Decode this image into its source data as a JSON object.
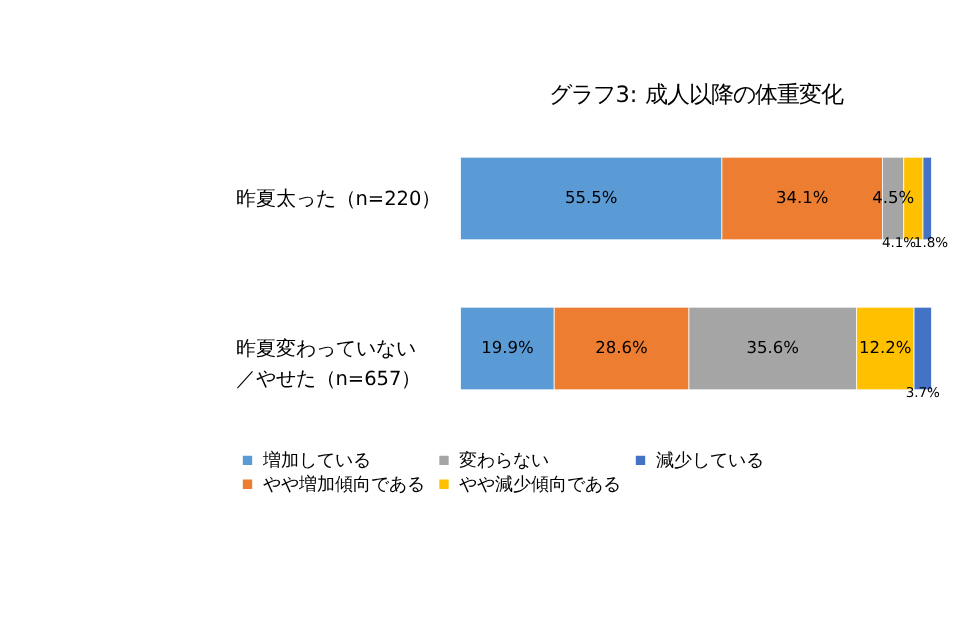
{
  "chart_data": {
    "type": "bar",
    "orientation": "horizontal",
    "stacked": true,
    "title": "グラフ3: 成人以降の体重変化",
    "categories": [
      "昨夏太った（n=220）",
      "昨夏変わっていない／やせた（n=657）"
    ],
    "xlim": [
      0,
      100
    ],
    "tick_labels": "y",
    "grid": false,
    "legend": "bottom",
    "series": [
      {
        "name": "増加している",
        "color": "#5b9bd5",
        "values": [
          55.5,
          19.9
        ],
        "value_labels": [
          "55.5%",
          "19.9%"
        ]
      },
      {
        "name": "やや増加傾向である",
        "color": "#ed7d31",
        "values": [
          34.1,
          28.6
        ],
        "value_labels": [
          "34.1%",
          "28.6%"
        ]
      },
      {
        "name": "変わらない",
        "color": "#a5a5a5",
        "values": [
          4.5,
          35.6
        ],
        "value_labels": [
          "4.5%",
          "35.6%"
        ]
      },
      {
        "name": "やや減少傾向である",
        "color": "#ffc000",
        "values": [
          4.1,
          12.2
        ],
        "value_labels": [
          "4.1%",
          "12.2%"
        ]
      },
      {
        "name": "減少している",
        "color": "#4472c4",
        "values": [
          1.8,
          3.7
        ],
        "value_labels": [
          "1.8%",
          "3.7%"
        ]
      }
    ]
  }
}
